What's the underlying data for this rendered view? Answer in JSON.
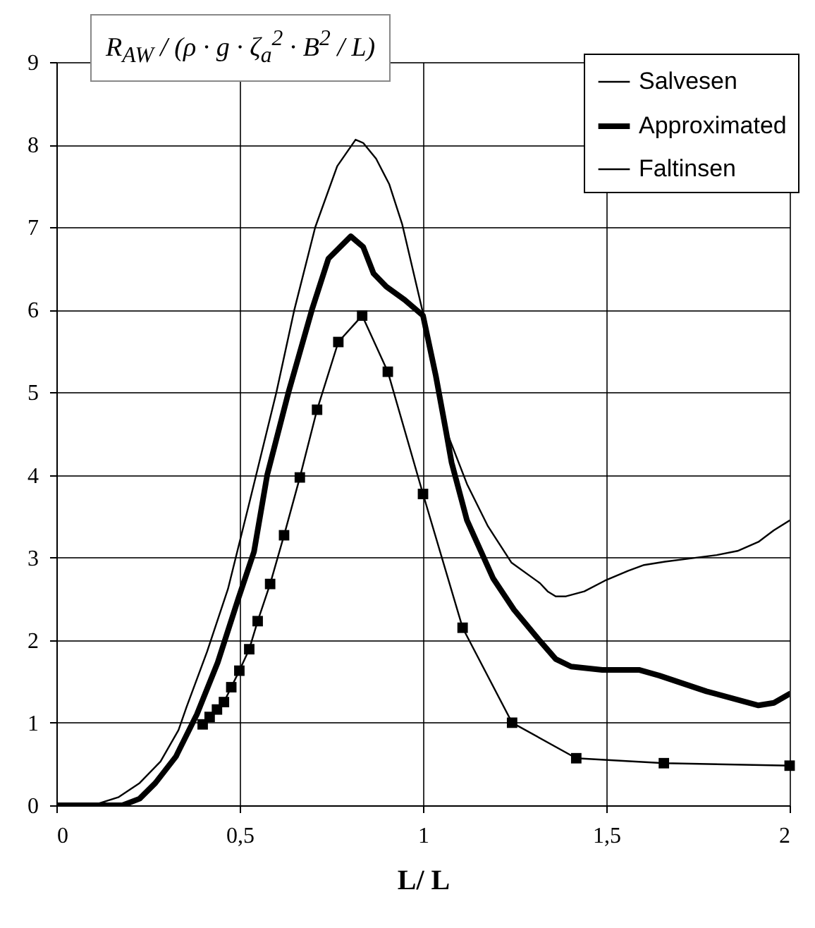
{
  "chart_data": {
    "type": "line",
    "xlabel": "L/ L",
    "ylabel": "R$_{AW}$ / (ρ · g · ζ$_{a}$$^{2}$ · B$^{2}$ / L)",
    "xlim": [
      0,
      2
    ],
    "xticks": [
      0,
      {
        "value": 0.5,
        "label": "0,5"
      },
      1,
      {
        "value": 1.5,
        "label": "1,5"
      },
      2
    ],
    "ylim": [
      0,
      9
    ],
    "yticks": [
      0,
      1,
      2,
      3,
      4,
      5,
      6,
      7,
      8,
      9
    ],
    "grid": true,
    "legend": "top right",
    "series": [
      {
        "name": "Salvesen",
        "color": "#000000",
        "marker": "none",
        "x": [
          0,
          0.1,
          0.17,
          0.227,
          0.284,
          0.333,
          0.355,
          0.411,
          0.468,
          0.525,
          0.6,
          0.649,
          0.706,
          0.766,
          0.816,
          0.837,
          0.872,
          0.908,
          0.943,
          1.0,
          1.064,
          1.12,
          1.177,
          1.241,
          1.319,
          1.34,
          1.362,
          1.39,
          1.44,
          1.496,
          1.56,
          1.603,
          1.66,
          1.73,
          1.801,
          1.858,
          1.915,
          1.957,
          2.0
        ],
        "values": [
          0,
          0,
          0.1,
          0.27,
          0.53,
          0.91,
          1.19,
          1.86,
          2.62,
          3.64,
          5.0,
          6.0,
          7.0,
          7.74,
          8.06,
          8.02,
          7.83,
          7.52,
          7.04,
          5.96,
          4.53,
          3.89,
          3.38,
          2.94,
          2.69,
          2.59,
          2.53,
          2.53,
          2.59,
          2.72,
          2.84,
          2.91,
          2.95,
          2.99,
          3.03,
          3.08,
          3.19,
          3.33,
          3.45
        ]
      },
      {
        "name": "Approximated",
        "color": "#000000",
        "marker": "none",
        "x": [
          0,
          0.04,
          0.13,
          0.18,
          0.227,
          0.27,
          0.326,
          0.383,
          0.44,
          0.496,
          0.539,
          0.575,
          0.633,
          0.697,
          0.742,
          0.803,
          0.837,
          0.865,
          0.9,
          0.95,
          1.0,
          1.035,
          1.064,
          1.078,
          1.12,
          1.191,
          1.248,
          1.319,
          1.362,
          1.404,
          1.489,
          1.589,
          1.645,
          1.773,
          1.915,
          1.957,
          2.0
        ],
        "values": [
          0,
          0,
          0,
          0,
          0.08,
          0.27,
          0.59,
          1.1,
          1.73,
          2.5,
          3.07,
          4.0,
          5.0,
          6.0,
          6.62,
          6.89,
          6.76,
          6.44,
          6.28,
          6.12,
          5.93,
          5.2,
          4.5,
          4.15,
          3.45,
          2.75,
          2.37,
          1.99,
          1.77,
          1.68,
          1.64,
          1.64,
          1.57,
          1.38,
          1.21,
          1.24,
          1.35
        ]
      },
      {
        "name": "Faltinsen",
        "color": "#000000",
        "marker": "square",
        "x": [
          0.399,
          0.418,
          0.438,
          0.457,
          0.477,
          0.499,
          0.526,
          0.549,
          0.583,
          0.621,
          0.664,
          0.711,
          0.769,
          0.834,
          0.904,
          1.0,
          1.108,
          1.243,
          1.418,
          1.657,
          2.0
        ],
        "values": [
          0.98,
          1.07,
          1.16,
          1.25,
          1.43,
          1.63,
          1.89,
          2.23,
          2.68,
          3.27,
          3.97,
          4.79,
          5.61,
          5.93,
          5.25,
          3.77,
          2.15,
          1.0,
          0.57,
          0.51,
          0.48
        ]
      }
    ]
  }
}
